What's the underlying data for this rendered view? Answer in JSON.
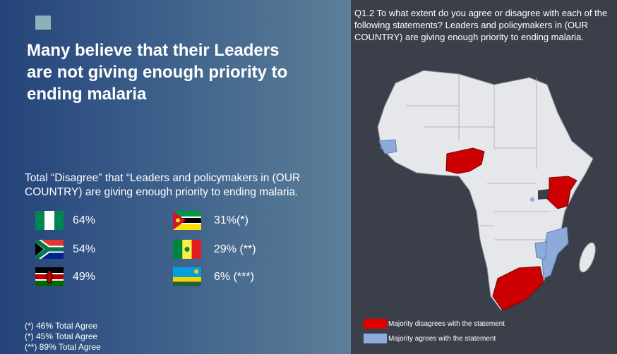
{
  "header": {
    "title": "Many believe that their Leaders are not giving enough priority to ending malaria"
  },
  "subtitle": "Total “Disagree” that “Leaders and policymakers in (OUR COUNTRY) are giving enough priority to ending malaria.",
  "stats": [
    {
      "country": "Nigeria",
      "label": "64%"
    },
    {
      "country": "South Africa",
      "label": "54%"
    },
    {
      "country": "Kenya",
      "label": "49%"
    },
    {
      "country": "Mozambique",
      "label": "31%(*)"
    },
    {
      "country": "Senegal",
      "label": "29% (**)"
    },
    {
      "country": "Rwanda",
      "label": "6% (***)"
    }
  ],
  "footnotes": [
    "(*) 46% Total Agree",
    "(*) 45% Total Agree",
    "(**) 89% Total Agree"
  ],
  "question": "Q1.2 To what extent do you agree or disagree with each of the following statements? Leaders and policymakers in (OUR COUNTRY) are giving enough priority to ending malaria.",
  "legend": [
    {
      "label": "Majority disagrees with the statement",
      "color": "#e00000"
    },
    {
      "label": "Majority agrees with the statement",
      "color": "#8eaadb"
    }
  ]
}
